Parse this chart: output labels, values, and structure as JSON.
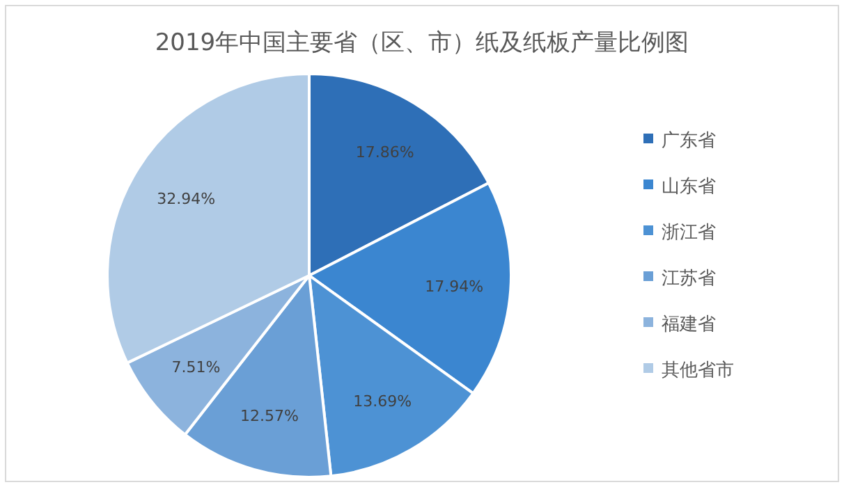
{
  "chart_data": {
    "type": "pie",
    "title": "2019年中国主要省（区、市）纸及纸板产量比例图",
    "categories": [
      "广东省",
      "山东省",
      "浙江省",
      "江苏省",
      "福建省",
      "其他省市"
    ],
    "values": [
      17.86,
      17.94,
      13.69,
      12.57,
      7.51,
      32.94
    ],
    "colors": [
      "#2e6fb7",
      "#3b86d0",
      "#4d92d4",
      "#6a9fd6",
      "#8cb3dd",
      "#b0cbe6"
    ],
    "value_labels": [
      "17.86%",
      "17.94%",
      "13.69%",
      "12.57%",
      "7.51%",
      "32.94%"
    ],
    "legend": "right"
  }
}
